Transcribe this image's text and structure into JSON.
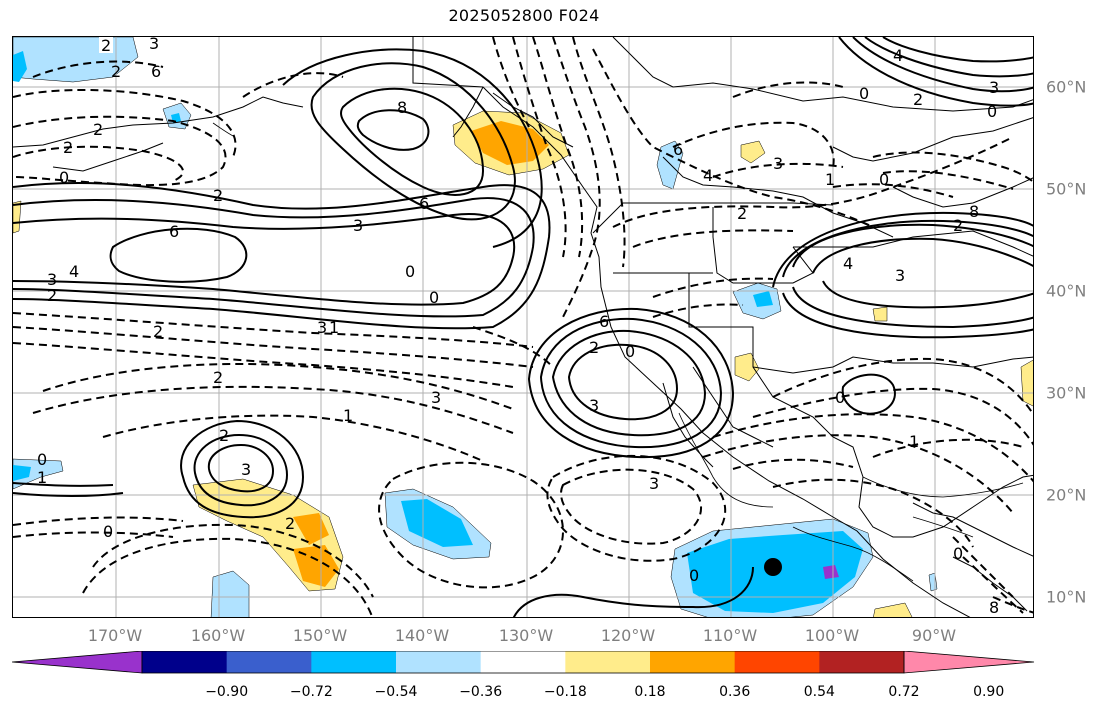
{
  "title": "2025052800 F024",
  "colors": {
    "grid": "#b0b0b0",
    "contour": "#000000",
    "label_gray": "#7f7f7f"
  },
  "longitude_labels": [
    "170°W",
    "160°W",
    "150°W",
    "140°W",
    "130°W",
    "120°W",
    "110°W",
    "100°W",
    "90°W"
  ],
  "latitude_labels": [
    "60°N",
    "50°N",
    "40°N",
    "30°N",
    "20°N",
    "10°N"
  ],
  "colorbar": {
    "bins": [
      "#9932cc",
      "#00008b",
      "#3a5fcd",
      "#00bfff",
      "#b0e2ff",
      "#ffffff",
      "#ffec8b",
      "#ffa500",
      "#ff4500",
      "#b22222",
      "#ff88aa"
    ],
    "ticks": [
      "−0.90",
      "−0.72",
      "−0.54",
      "−0.36",
      "−0.18",
      "0.18",
      "0.36",
      "0.54",
      "0.72",
      "0.90"
    ]
  },
  "contour_labels": [
    {
      "id": "c1",
      "text": "2"
    },
    {
      "id": "c2",
      "text": "3"
    },
    {
      "id": "c3",
      "text": "2"
    },
    {
      "id": "c4",
      "text": "6"
    },
    {
      "id": "c5",
      "text": "2"
    },
    {
      "id": "c6",
      "text": "2"
    },
    {
      "id": "c7",
      "text": "0"
    },
    {
      "id": "c8",
      "text": "6"
    },
    {
      "id": "c9",
      "text": "4"
    },
    {
      "id": "c10",
      "text": "3"
    },
    {
      "id": "c11",
      "text": "2"
    },
    {
      "id": "c12",
      "text": "2"
    },
    {
      "id": "c13",
      "text": "8"
    },
    {
      "id": "c14",
      "text": "6"
    },
    {
      "id": "c15",
      "text": "3"
    },
    {
      "id": "c16",
      "text": "0"
    },
    {
      "id": "c17",
      "text": "0"
    },
    {
      "id": "c18",
      "text": "2"
    },
    {
      "id": "c19",
      "text": "3"
    },
    {
      "id": "c20",
      "text": "1"
    },
    {
      "id": "c21",
      "text": "2"
    },
    {
      "id": "c22",
      "text": "3"
    },
    {
      "id": "c23",
      "text": "0"
    },
    {
      "id": "c24",
      "text": "1"
    },
    {
      "id": "c25",
      "text": "0"
    },
    {
      "id": "c26",
      "text": "2"
    },
    {
      "id": "c27",
      "text": "1"
    },
    {
      "id": "c28",
      "text": "2"
    },
    {
      "id": "c29",
      "text": "3"
    },
    {
      "id": "c30",
      "text": "6"
    },
    {
      "id": "c31",
      "text": "2"
    },
    {
      "id": "c32",
      "text": "3"
    },
    {
      "id": "c33",
      "text": "2"
    },
    {
      "id": "c34",
      "text": "0"
    },
    {
      "id": "c35",
      "text": "6"
    },
    {
      "id": "c36",
      "text": "4"
    },
    {
      "id": "c37",
      "text": "3"
    },
    {
      "id": "c38",
      "text": "1"
    },
    {
      "id": "c39",
      "text": "0"
    },
    {
      "id": "c40",
      "text": "2"
    },
    {
      "id": "c41",
      "text": "4"
    },
    {
      "id": "c42",
      "text": "3"
    },
    {
      "id": "c43",
      "text": "8"
    },
    {
      "id": "c44",
      "text": "0"
    },
    {
      "id": "c45",
      "text": "4"
    },
    {
      "id": "c46",
      "text": "3"
    },
    {
      "id": "c47",
      "text": "0"
    },
    {
      "id": "c48",
      "text": "0"
    },
    {
      "id": "c49",
      "text": "2"
    },
    {
      "id": "c50",
      "text": "1"
    },
    {
      "id": "c51",
      "text": "0"
    },
    {
      "id": "c52",
      "text": "0"
    },
    {
      "id": "c53",
      "text": "8"
    },
    {
      "id": "c54",
      "text": "3"
    }
  ]
}
